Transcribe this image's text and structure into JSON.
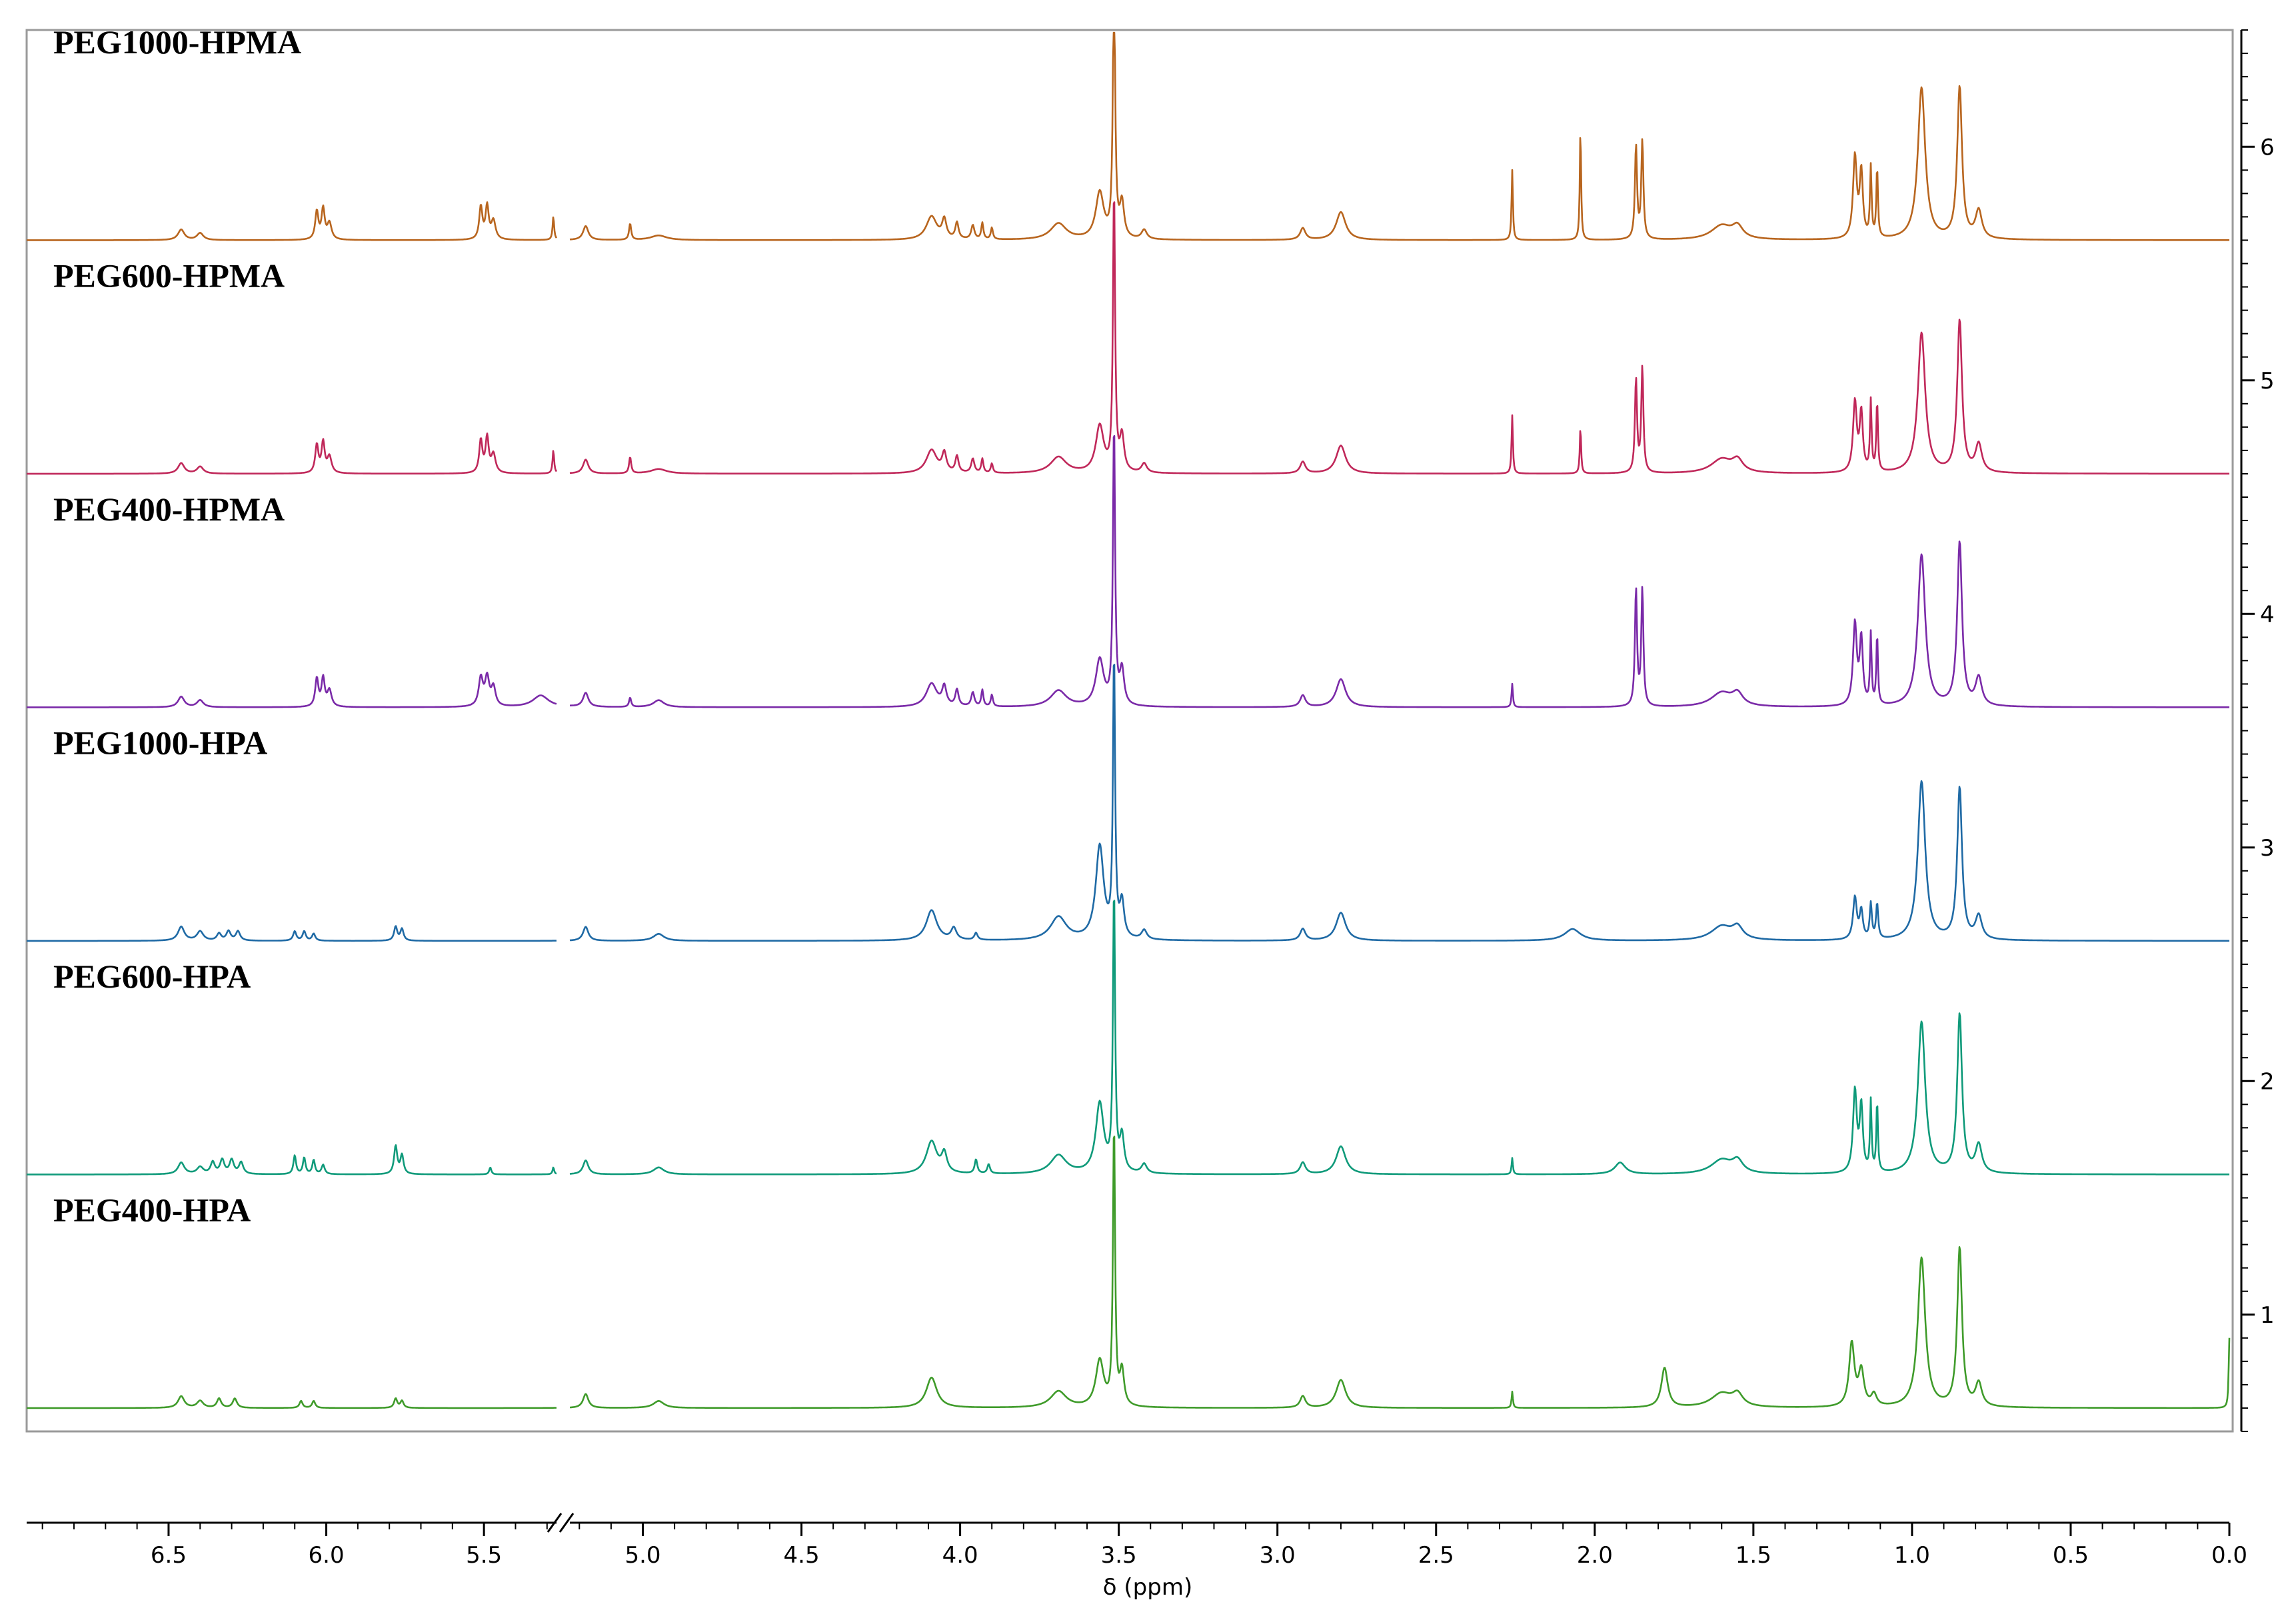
{
  "chart_data": {
    "type": "line",
    "xlabel": "δ (ppm)",
    "x_axis_segments": [
      {
        "from": 6.95,
        "to": 5.27
      },
      {
        "from": 5.23,
        "to": 0.0
      }
    ],
    "x_ticks": [
      {
        "value": 6.5,
        "label": "6.5"
      },
      {
        "value": 6.0,
        "label": "6.0"
      },
      {
        "value": 5.5,
        "label": "5.5"
      },
      {
        "value": 5.0,
        "label": "5.0"
      },
      {
        "value": 4.5,
        "label": "4.5"
      },
      {
        "value": 4.0,
        "label": "4.0"
      },
      {
        "value": 3.5,
        "label": "3.5"
      },
      {
        "value": 3.0,
        "label": "3.0"
      },
      {
        "value": 2.5,
        "label": "2.5"
      },
      {
        "value": 2.0,
        "label": "2.0"
      },
      {
        "value": 1.5,
        "label": "1.5"
      },
      {
        "value": 1.0,
        "label": "1.0"
      },
      {
        "value": 0.5,
        "label": "0.5"
      },
      {
        "value": 0.0,
        "label": "0.0"
      }
    ],
    "y_ticks": [
      {
        "value": 1,
        "label": "1"
      },
      {
        "value": 2,
        "label": "2"
      },
      {
        "value": 3,
        "label": "3"
      },
      {
        "value": 4,
        "label": "4"
      },
      {
        "value": 5,
        "label": "5"
      },
      {
        "value": 6,
        "label": "6"
      }
    ],
    "ylim": [
      0.5,
      6.5
    ],
    "series": [
      {
        "name": "PEG1000-HPMA",
        "color": "#b8651e",
        "baseline": 5.6,
        "peaks": [
          [
            6.46,
            0.045,
            0.012
          ],
          [
            6.4,
            0.03,
            0.012
          ],
          [
            6.03,
            0.12,
            0.006
          ],
          [
            6.01,
            0.13,
            0.006
          ],
          [
            5.99,
            0.07,
            0.008
          ],
          [
            5.51,
            0.14,
            0.006
          ],
          [
            5.49,
            0.14,
            0.006
          ],
          [
            5.47,
            0.08,
            0.008
          ],
          [
            5.28,
            0.1,
            0.003
          ],
          [
            5.18,
            0.06,
            0.01
          ],
          [
            5.04,
            0.07,
            0.004
          ],
          [
            4.95,
            0.02,
            0.03
          ],
          [
            4.09,
            0.1,
            0.02
          ],
          [
            4.05,
            0.08,
            0.008
          ],
          [
            4.01,
            0.07,
            0.006
          ],
          [
            3.96,
            0.06,
            0.006
          ],
          [
            3.93,
            0.07,
            0.004
          ],
          [
            3.9,
            0.05,
            0.004
          ],
          [
            3.69,
            0.07,
            0.03
          ],
          [
            3.56,
            0.2,
            0.015
          ],
          [
            3.515,
            1.2,
            0.004
          ],
          [
            3.49,
            0.15,
            0.008
          ],
          [
            3.42,
            0.04,
            0.01
          ],
          [
            2.92,
            0.05,
            0.01
          ],
          [
            2.8,
            0.12,
            0.018
          ],
          [
            2.26,
            0.3,
            0.0025
          ],
          [
            2.045,
            0.48,
            0.0025
          ],
          [
            1.87,
            0.4,
            0.004
          ],
          [
            1.85,
            0.42,
            0.004
          ],
          [
            1.6,
            0.06,
            0.04
          ],
          [
            1.55,
            0.05,
            0.02
          ],
          [
            1.18,
            0.35,
            0.007
          ],
          [
            1.16,
            0.28,
            0.006
          ],
          [
            1.13,
            0.3,
            0.003
          ],
          [
            1.11,
            0.3,
            0.003
          ],
          [
            0.97,
            0.65,
            0.014
          ],
          [
            0.85,
            0.65,
            0.009
          ],
          [
            0.79,
            0.12,
            0.012
          ]
        ]
      },
      {
        "name": "PEG600-HPMA",
        "color": "#c0285a",
        "baseline": 4.6,
        "peaks": [
          [
            6.46,
            0.045,
            0.012
          ],
          [
            6.4,
            0.03,
            0.012
          ],
          [
            6.03,
            0.12,
            0.006
          ],
          [
            6.01,
            0.13,
            0.006
          ],
          [
            5.99,
            0.07,
            0.008
          ],
          [
            5.51,
            0.14,
            0.006
          ],
          [
            5.49,
            0.15,
            0.006
          ],
          [
            5.47,
            0.08,
            0.008
          ],
          [
            5.28,
            0.1,
            0.003
          ],
          [
            5.18,
            0.06,
            0.01
          ],
          [
            5.04,
            0.07,
            0.004
          ],
          [
            4.95,
            0.02,
            0.03
          ],
          [
            4.09,
            0.1,
            0.02
          ],
          [
            4.05,
            0.08,
            0.008
          ],
          [
            4.01,
            0.07,
            0.006
          ],
          [
            3.96,
            0.06,
            0.006
          ],
          [
            3.93,
            0.06,
            0.004
          ],
          [
            3.9,
            0.04,
            0.004
          ],
          [
            3.69,
            0.07,
            0.03
          ],
          [
            3.56,
            0.2,
            0.015
          ],
          [
            3.515,
            1.2,
            0.004
          ],
          [
            3.49,
            0.15,
            0.008
          ],
          [
            3.42,
            0.04,
            0.01
          ],
          [
            2.92,
            0.05,
            0.01
          ],
          [
            2.8,
            0.12,
            0.018
          ],
          [
            2.26,
            0.25,
            0.0025
          ],
          [
            2.045,
            0.2,
            0.0025
          ],
          [
            1.87,
            0.4,
            0.004
          ],
          [
            1.85,
            0.45,
            0.004
          ],
          [
            1.6,
            0.06,
            0.04
          ],
          [
            1.55,
            0.05,
            0.02
          ],
          [
            1.18,
            0.3,
            0.007
          ],
          [
            1.16,
            0.25,
            0.006
          ],
          [
            1.13,
            0.3,
            0.003
          ],
          [
            1.11,
            0.3,
            0.003
          ],
          [
            0.97,
            0.6,
            0.014
          ],
          [
            0.85,
            0.65,
            0.009
          ],
          [
            0.79,
            0.12,
            0.012
          ]
        ]
      },
      {
        "name": "PEG400-HPMA",
        "color": "#7a2aa8",
        "baseline": 3.6,
        "peaks": [
          [
            6.46,
            0.045,
            0.012
          ],
          [
            6.4,
            0.03,
            0.012
          ],
          [
            6.03,
            0.12,
            0.006
          ],
          [
            6.01,
            0.12,
            0.006
          ],
          [
            5.99,
            0.07,
            0.008
          ],
          [
            5.51,
            0.12,
            0.008
          ],
          [
            5.49,
            0.12,
            0.008
          ],
          [
            5.47,
            0.08,
            0.008
          ],
          [
            5.32,
            0.05,
            0.03
          ],
          [
            5.18,
            0.06,
            0.01
          ],
          [
            5.04,
            0.04,
            0.004
          ],
          [
            4.95,
            0.03,
            0.02
          ],
          [
            4.09,
            0.1,
            0.02
          ],
          [
            4.05,
            0.08,
            0.008
          ],
          [
            4.01,
            0.07,
            0.006
          ],
          [
            3.96,
            0.06,
            0.006
          ],
          [
            3.93,
            0.07,
            0.004
          ],
          [
            3.9,
            0.05,
            0.004
          ],
          [
            3.69,
            0.07,
            0.03
          ],
          [
            3.56,
            0.2,
            0.015
          ],
          [
            3.515,
            1.2,
            0.004
          ],
          [
            3.49,
            0.15,
            0.008
          ],
          [
            2.92,
            0.05,
            0.01
          ],
          [
            2.8,
            0.12,
            0.018
          ],
          [
            2.26,
            0.1,
            0.0025
          ],
          [
            1.87,
            0.5,
            0.004
          ],
          [
            1.85,
            0.5,
            0.004
          ],
          [
            1.6,
            0.06,
            0.04
          ],
          [
            1.55,
            0.05,
            0.02
          ],
          [
            1.18,
            0.35,
            0.007
          ],
          [
            1.16,
            0.28,
            0.006
          ],
          [
            1.13,
            0.3,
            0.003
          ],
          [
            1.11,
            0.3,
            0.003
          ],
          [
            0.97,
            0.65,
            0.014
          ],
          [
            0.85,
            0.7,
            0.009
          ],
          [
            0.79,
            0.12,
            0.012
          ]
        ]
      },
      {
        "name": "PEG1000-HPA",
        "color": "#1f6aa5",
        "baseline": 2.6,
        "peaks": [
          [
            6.46,
            0.06,
            0.012
          ],
          [
            6.4,
            0.04,
            0.012
          ],
          [
            6.34,
            0.03,
            0.008
          ],
          [
            6.31,
            0.04,
            0.008
          ],
          [
            6.28,
            0.04,
            0.008
          ],
          [
            6.1,
            0.04,
            0.006
          ],
          [
            6.07,
            0.04,
            0.006
          ],
          [
            6.04,
            0.03,
            0.006
          ],
          [
            5.78,
            0.06,
            0.006
          ],
          [
            5.76,
            0.05,
            0.006
          ],
          [
            5.18,
            0.06,
            0.01
          ],
          [
            4.95,
            0.03,
            0.02
          ],
          [
            4.09,
            0.13,
            0.02
          ],
          [
            4.02,
            0.05,
            0.01
          ],
          [
            3.95,
            0.03,
            0.006
          ],
          [
            3.69,
            0.1,
            0.03
          ],
          [
            3.56,
            0.4,
            0.015
          ],
          [
            3.515,
            1.2,
            0.004
          ],
          [
            3.49,
            0.15,
            0.008
          ],
          [
            3.42,
            0.04,
            0.01
          ],
          [
            2.92,
            0.05,
            0.01
          ],
          [
            2.8,
            0.12,
            0.018
          ],
          [
            2.07,
            0.05,
            0.03
          ],
          [
            1.6,
            0.06,
            0.04
          ],
          [
            1.55,
            0.05,
            0.02
          ],
          [
            1.18,
            0.18,
            0.007
          ],
          [
            1.16,
            0.12,
            0.006
          ],
          [
            1.13,
            0.15,
            0.004
          ],
          [
            1.11,
            0.15,
            0.004
          ],
          [
            0.97,
            0.68,
            0.014
          ],
          [
            0.85,
            0.65,
            0.009
          ],
          [
            0.79,
            0.1,
            0.012
          ]
        ]
      },
      {
        "name": "PEG600-HPA",
        "color": "#0f9a7a",
        "baseline": 1.6,
        "peaks": [
          [
            6.46,
            0.05,
            0.012
          ],
          [
            6.4,
            0.03,
            0.012
          ],
          [
            6.36,
            0.05,
            0.008
          ],
          [
            6.33,
            0.06,
            0.008
          ],
          [
            6.3,
            0.06,
            0.008
          ],
          [
            6.27,
            0.05,
            0.008
          ],
          [
            6.1,
            0.08,
            0.005
          ],
          [
            6.07,
            0.07,
            0.005
          ],
          [
            6.04,
            0.06,
            0.005
          ],
          [
            6.01,
            0.04,
            0.006
          ],
          [
            5.78,
            0.12,
            0.006
          ],
          [
            5.76,
            0.08,
            0.006
          ],
          [
            5.48,
            0.03,
            0.004
          ],
          [
            5.28,
            0.03,
            0.003
          ],
          [
            5.18,
            0.06,
            0.01
          ],
          [
            4.95,
            0.03,
            0.02
          ],
          [
            4.09,
            0.14,
            0.02
          ],
          [
            4.05,
            0.08,
            0.01
          ],
          [
            3.95,
            0.06,
            0.005
          ],
          [
            3.91,
            0.04,
            0.005
          ],
          [
            3.69,
            0.08,
            0.03
          ],
          [
            3.56,
            0.3,
            0.015
          ],
          [
            3.515,
            1.2,
            0.004
          ],
          [
            3.49,
            0.15,
            0.008
          ],
          [
            3.42,
            0.04,
            0.01
          ],
          [
            2.92,
            0.05,
            0.01
          ],
          [
            2.8,
            0.12,
            0.018
          ],
          [
            2.26,
            0.07,
            0.0025
          ],
          [
            1.92,
            0.05,
            0.02
          ],
          [
            1.6,
            0.06,
            0.04
          ],
          [
            1.55,
            0.05,
            0.02
          ],
          [
            1.18,
            0.35,
            0.007
          ],
          [
            1.16,
            0.28,
            0.006
          ],
          [
            1.13,
            0.3,
            0.003
          ],
          [
            1.11,
            0.3,
            0.003
          ],
          [
            0.97,
            0.65,
            0.014
          ],
          [
            0.85,
            0.68,
            0.009
          ],
          [
            0.79,
            0.12,
            0.012
          ]
        ]
      },
      {
        "name": "PEG400-HPA",
        "color": "#3f9b2a",
        "baseline": 0.6,
        "peaks": [
          [
            6.46,
            0.05,
            0.012
          ],
          [
            6.4,
            0.03,
            0.012
          ],
          [
            6.34,
            0.04,
            0.008
          ],
          [
            6.29,
            0.04,
            0.008
          ],
          [
            6.08,
            0.03,
            0.006
          ],
          [
            6.04,
            0.03,
            0.006
          ],
          [
            5.78,
            0.04,
            0.006
          ],
          [
            5.76,
            0.03,
            0.006
          ],
          [
            5.18,
            0.06,
            0.01
          ],
          [
            4.95,
            0.03,
            0.02
          ],
          [
            4.09,
            0.13,
            0.02
          ],
          [
            3.69,
            0.07,
            0.03
          ],
          [
            3.56,
            0.2,
            0.015
          ],
          [
            3.515,
            1.2,
            0.004
          ],
          [
            3.49,
            0.15,
            0.008
          ],
          [
            2.92,
            0.05,
            0.01
          ],
          [
            2.8,
            0.12,
            0.018
          ],
          [
            2.26,
            0.07,
            0.0025
          ],
          [
            1.78,
            0.17,
            0.012
          ],
          [
            1.6,
            0.06,
            0.04
          ],
          [
            1.55,
            0.05,
            0.02
          ],
          [
            1.19,
            0.27,
            0.01
          ],
          [
            1.16,
            0.15,
            0.01
          ],
          [
            1.12,
            0.05,
            0.01
          ],
          [
            0.97,
            0.64,
            0.014
          ],
          [
            0.85,
            0.68,
            0.009
          ],
          [
            0.79,
            0.1,
            0.012
          ],
          [
            0.0,
            0.3,
            0.0025
          ]
        ]
      }
    ]
  }
}
